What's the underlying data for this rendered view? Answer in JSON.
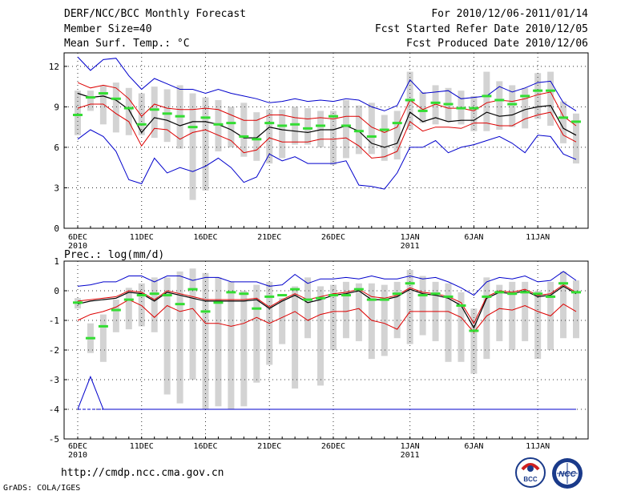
{
  "header": {
    "title": "DERF/NCC/BCC Monthly Forecast",
    "member_size": "Member Size=40",
    "variable": "Mean Surf. Temp.: °C",
    "period": "For 2010/12/06-2011/01/14",
    "fcst_started": "Fcst Started Refer Date 2010/12/05",
    "fcst_produced": "Fcst Produced Date 2010/12/06"
  },
  "footer": {
    "url": "http://cmdp.ncc.cma.gov.cn",
    "credit": "GrADS: COLA/IGES",
    "logo_left_text": "BCC",
    "logo_right_text": "NCC"
  },
  "colors": {
    "envelope": "#0000cc",
    "spread": "#dd0000",
    "mean": "#000000",
    "median": "#33dd33",
    "box": "#d3d3d3",
    "grid": "#333333"
  },
  "chart_data": [
    {
      "type": "line",
      "title": "Mean Surf. Temp.: °C",
      "ylim": [
        0,
        13
      ],
      "yticks": [
        "0",
        "3",
        "6",
        "9",
        "12"
      ],
      "ytick_values": [
        0,
        3,
        6,
        9,
        12
      ],
      "x": [
        1,
        2,
        3,
        4,
        5,
        6,
        7,
        8,
        9,
        10,
        11,
        12,
        13,
        14,
        15,
        16,
        17,
        18,
        19,
        20,
        21,
        22,
        23,
        24,
        25,
        26,
        27,
        28,
        29,
        30,
        31,
        32,
        33,
        34,
        35,
        36,
        37,
        38,
        39,
        40
      ],
      "xtick_labels": [
        {
          "day": 1,
          "label": "6DEC",
          "year": "2010"
        },
        {
          "day": 6,
          "label": "11DEC",
          "year": ""
        },
        {
          "day": 11,
          "label": "16DEC",
          "year": ""
        },
        {
          "day": 16,
          "label": "21DEC",
          "year": ""
        },
        {
          "day": 21,
          "label": "26DEC",
          "year": ""
        },
        {
          "day": 27,
          "label": "1JAN",
          "year": "2011"
        },
        {
          "day": 32,
          "label": "6JAN",
          "year": ""
        },
        {
          "day": 37,
          "label": "11JAN",
          "year": ""
        }
      ],
      "series": [
        {
          "name": "max",
          "values": [
            12.7,
            11.7,
            12.5,
            12.6,
            11.3,
            10.3,
            11.1,
            10.7,
            10.3,
            10.3,
            10.0,
            10.3,
            10.0,
            9.8,
            9.6,
            9.3,
            9.4,
            9.6,
            9.4,
            9.5,
            9.4,
            9.6,
            9.5,
            9.0,
            8.7,
            9.1,
            11.0,
            10.0,
            10.1,
            10.2,
            9.6,
            9.7,
            9.8,
            10.5,
            10.1,
            10.4,
            10.8,
            10.9,
            9.3,
            8.7
          ]
        },
        {
          "name": "upper",
          "values": [
            10.8,
            10.4,
            10.6,
            10.4,
            9.6,
            8.3,
            9.2,
            8.9,
            8.8,
            8.8,
            8.9,
            8.8,
            8.4,
            8.0,
            8.0,
            8.4,
            8.4,
            8.2,
            8.1,
            8.2,
            8.1,
            8.3,
            8.3,
            7.5,
            7.1,
            7.5,
            9.5,
            8.8,
            9.2,
            8.9,
            8.9,
            8.7,
            9.3,
            9.5,
            9.4,
            9.6,
            9.9,
            10.1,
            8.3,
            7.6
          ]
        },
        {
          "name": "mean",
          "values": [
            10.0,
            9.7,
            9.8,
            9.5,
            8.8,
            7.1,
            8.2,
            8.0,
            7.6,
            7.9,
            7.9,
            7.7,
            7.3,
            6.7,
            6.7,
            7.5,
            7.3,
            7.2,
            7.1,
            7.3,
            7.3,
            7.6,
            7.2,
            6.3,
            6.0,
            6.3,
            8.6,
            7.9,
            8.2,
            7.9,
            8.0,
            8.0,
            8.6,
            8.3,
            8.4,
            8.8,
            9.0,
            9.1,
            7.4,
            6.9
          ]
        },
        {
          "name": "lower",
          "values": [
            8.9,
            9.2,
            9.2,
            8.5,
            7.9,
            6.1,
            7.4,
            7.3,
            6.6,
            7.1,
            7.3,
            6.9,
            6.5,
            5.6,
            5.8,
            6.7,
            6.4,
            6.4,
            6.4,
            6.6,
            6.6,
            6.7,
            6.1,
            5.2,
            5.3,
            5.7,
            7.9,
            7.2,
            7.5,
            7.5,
            7.4,
            7.8,
            7.8,
            7.6,
            7.6,
            8.1,
            8.4,
            8.6,
            6.9,
            6.4
          ]
        },
        {
          "name": "min",
          "values": [
            6.6,
            7.3,
            6.8,
            5.7,
            3.6,
            3.3,
            5.2,
            4.1,
            4.5,
            4.2,
            4.6,
            5.2,
            4.5,
            3.4,
            3.8,
            5.5,
            5.0,
            5.3,
            4.8,
            4.8,
            4.8,
            5.0,
            3.2,
            3.1,
            2.9,
            4.1,
            6.0,
            6.0,
            6.5,
            5.6,
            6.0,
            6.2,
            6.5,
            6.8,
            6.3,
            5.6,
            6.9,
            6.8,
            5.5,
            5.1
          ]
        },
        {
          "name": "median",
          "values": [
            8.4,
            9.7,
            10.0,
            9.6,
            8.9,
            7.7,
            8.8,
            8.5,
            8.3,
            7.5,
            8.2,
            7.7,
            7.8,
            6.8,
            6.6,
            7.8,
            7.6,
            7.7,
            7.4,
            7.6,
            8.3,
            7.6,
            7.2,
            6.8,
            7.3,
            7.8,
            9.5,
            8.7,
            9.3,
            9.2,
            8.9,
            8.9,
            9.8,
            9.5,
            9.2,
            9.8,
            10.2,
            10.2,
            8.2,
            7.9
          ]
        }
      ],
      "boxes": {
        "low": [
          6.9,
          8.7,
          7.7,
          7.1,
          6.9,
          6.9,
          6.7,
          6.4,
          5.9,
          2.1,
          2.8,
          5.7,
          6.0,
          5.3,
          5.0,
          4.8,
          5.2,
          6.2,
          6.2,
          6.0,
          4.7,
          5.2,
          5.5,
          5.5,
          5.0,
          5.1,
          7.3,
          7.8,
          7.7,
          7.9,
          7.7,
          7.2,
          7.2,
          7.3,
          7.5,
          7.4,
          8.1,
          7.6,
          6.3,
          4.8
        ],
        "high": [
          10.2,
          10.2,
          10.6,
          10.8,
          10.4,
          10.0,
          10.5,
          10.3,
          10.6,
          10.0,
          9.7,
          9.5,
          9.0,
          9.3,
          8.6,
          8.8,
          8.8,
          9.0,
          8.9,
          8.7,
          8.7,
          9.5,
          9.1,
          9.3,
          8.4,
          8.7,
          11.6,
          10.1,
          10.6,
          10.4,
          10.2,
          9.8,
          11.6,
          10.9,
          10.6,
          10.4,
          11.5,
          11.6,
          9.4,
          8.5
        ]
      }
    },
    {
      "type": "line",
      "title": "Prec.: log(mm/d)",
      "ylim": [
        -5,
        1
      ],
      "yticks": [
        "-5",
        "-4",
        "-3",
        "-2",
        "-1",
        "0",
        "1"
      ],
      "ytick_values": [
        -5,
        -4,
        -3,
        -2,
        -1,
        0,
        1
      ],
      "x": [
        1,
        2,
        3,
        4,
        5,
        6,
        7,
        8,
        9,
        10,
        11,
        12,
        13,
        14,
        15,
        16,
        17,
        18,
        19,
        20,
        21,
        22,
        23,
        24,
        25,
        26,
        27,
        28,
        29,
        30,
        31,
        32,
        33,
        34,
        35,
        36,
        37,
        38,
        39,
        40
      ],
      "xtick_labels": [
        {
          "day": 1,
          "label": "6DEC",
          "year": "2010"
        },
        {
          "day": 6,
          "label": "11DEC",
          "year": ""
        },
        {
          "day": 11,
          "label": "16DEC",
          "year": ""
        },
        {
          "day": 16,
          "label": "21DEC",
          "year": ""
        },
        {
          "day": 21,
          "label": "26DEC",
          "year": ""
        },
        {
          "day": 27,
          "label": "1JAN",
          "year": "2011"
        },
        {
          "day": 32,
          "label": "6JAN",
          "year": ""
        },
        {
          "day": 37,
          "label": "11JAN",
          "year": ""
        }
      ],
      "series": [
        {
          "name": "max",
          "values": [
            0.15,
            0.2,
            0.3,
            0.3,
            0.5,
            0.5,
            0.3,
            0.5,
            0.5,
            0.35,
            0.45,
            0.45,
            0.3,
            0.3,
            0.3,
            0.15,
            0.2,
            0.55,
            0.25,
            0.4,
            0.4,
            0.45,
            0.4,
            0.5,
            0.4,
            0.4,
            0.5,
            0.4,
            0.45,
            0.3,
            0.1,
            -0.15,
            0.3,
            0.45,
            0.4,
            0.5,
            0.3,
            0.35,
            0.65,
            0.35
          ]
        },
        {
          "name": "upper",
          "values": [
            -0.35,
            -0.3,
            -0.25,
            -0.2,
            0.0,
            -0.05,
            -0.3,
            0.0,
            -0.1,
            -0.2,
            -0.3,
            -0.3,
            -0.3,
            -0.3,
            -0.25,
            -0.55,
            -0.3,
            -0.1,
            -0.3,
            -0.2,
            -0.1,
            -0.05,
            0.05,
            -0.2,
            -0.25,
            -0.15,
            0.1,
            -0.05,
            -0.1,
            -0.2,
            -0.4,
            -1.1,
            -0.2,
            0.0,
            -0.05,
            0.05,
            -0.15,
            -0.1,
            0.2,
            -0.05
          ]
        },
        {
          "name": "mean",
          "values": [
            -0.45,
            -0.35,
            -0.3,
            -0.25,
            -0.05,
            -0.1,
            -0.35,
            -0.05,
            -0.15,
            -0.25,
            -0.35,
            -0.35,
            -0.35,
            -0.35,
            -0.3,
            -0.6,
            -0.35,
            -0.15,
            -0.4,
            -0.3,
            -0.15,
            -0.1,
            0.0,
            -0.3,
            -0.3,
            -0.2,
            0.05,
            -0.1,
            -0.15,
            -0.25,
            -0.5,
            -1.25,
            -0.25,
            -0.05,
            -0.1,
            0.0,
            -0.2,
            -0.15,
            0.15,
            -0.1
          ]
        },
        {
          "name": "lower",
          "values": [
            -1.0,
            -0.8,
            -0.7,
            -0.55,
            -0.3,
            -0.5,
            -0.9,
            -0.5,
            -0.7,
            -0.6,
            -1.1,
            -1.1,
            -1.2,
            -1.1,
            -0.9,
            -1.1,
            -0.9,
            -0.7,
            -1.0,
            -0.8,
            -0.7,
            -0.7,
            -0.6,
            -1.0,
            -1.1,
            -1.3,
            -0.7,
            -0.7,
            -0.7,
            -0.7,
            -0.9,
            -1.4,
            -0.85,
            -0.6,
            -0.65,
            -0.5,
            -0.7,
            -0.85,
            -0.45,
            -0.7
          ]
        },
        {
          "name": "min",
          "values": [
            -4.0,
            -2.9,
            -4.0,
            -4.0,
            -4.0,
            -4.0,
            -4.0,
            -4.0,
            -4.0,
            -4.0,
            -4.0,
            -4.0,
            -4.0,
            -4.0,
            -4.0,
            -4.0,
            -4.0,
            -4.0,
            -4.0,
            -4.0,
            -4.0,
            -4.0,
            -4.0,
            -4.0,
            -4.0,
            -4.0,
            -4.0,
            -4.0,
            -4.0,
            -4.0,
            -4.0,
            -4.0,
            -4.0,
            -4.0,
            -4.0,
            -4.0,
            -4.0,
            -4.0,
            -4.0,
            -4.0
          ]
        },
        {
          "name": "median",
          "values": [
            -0.4,
            -1.6,
            -1.2,
            -0.65,
            -0.3,
            -0.15,
            -0.1,
            -0.15,
            -0.45,
            0.05,
            -0.7,
            -0.4,
            -0.05,
            -0.1,
            -0.6,
            -0.2,
            -0.15,
            0.05,
            -0.3,
            -0.25,
            -0.15,
            -0.15,
            0.05,
            -0.3,
            -0.3,
            -0.1,
            0.25,
            -0.15,
            -0.1,
            -0.2,
            -0.5,
            -1.35,
            -0.2,
            -0.05,
            -0.1,
            -0.05,
            -0.1,
            -0.2,
            0.25,
            -0.05
          ]
        },
        {
          "name": "baseline",
          "values": [
            -4.0,
            -4.0,
            -4.0,
            -4.0,
            -4.0,
            -4.0,
            -4.0,
            -4.0,
            -4.0,
            -4.0,
            -4.0,
            -4.0,
            -4.0,
            -4.0,
            -4.0,
            -4.0,
            -4.0,
            -4.0,
            -4.0,
            -4.0,
            -4.0,
            -4.0,
            -4.0,
            -4.0,
            -4.0,
            -4.0,
            -4.0,
            -4.0,
            -4.0,
            -4.0,
            -4.0,
            -4.0,
            -4.0,
            -4.0,
            -4.0,
            -4.0,
            -4.0,
            -4.0,
            -4.0,
            -4.0
          ]
        }
      ],
      "boxes": {
        "low": [
          -0.6,
          -2.1,
          -2.4,
          -1.4,
          -1.3,
          -1.2,
          -1.4,
          -3.5,
          -3.8,
          -3.0,
          -4.0,
          -3.9,
          -4.0,
          -3.9,
          -3.1,
          -2.5,
          -1.8,
          -3.3,
          -1.6,
          -3.2,
          -2.0,
          -1.6,
          -1.7,
          -2.3,
          -2.2,
          -1.6,
          -1.8,
          -1.5,
          -1.7,
          -2.4,
          -2.4,
          -2.8,
          -2.3,
          -1.7,
          -2.0,
          -1.7,
          -2.3,
          -2.0,
          -1.6,
          -1.6
        ],
        "high": [
          -0.25,
          -1.1,
          -0.8,
          -0.3,
          0.1,
          0.25,
          0.45,
          0.45,
          0.65,
          0.75,
          0.6,
          0.45,
          0.3,
          0.0,
          0.2,
          0.3,
          -0.25,
          0.15,
          0.45,
          0.15,
          0.2,
          0.3,
          0.25,
          0.25,
          0.2,
          0.3,
          0.7,
          0.5,
          0.3,
          0.25,
          -0.05,
          -0.6,
          0.45,
          0.2,
          0.3,
          0.3,
          0.0,
          0.3,
          0.65,
          0.35
        ]
      }
    }
  ],
  "prec_label": "Prec.: log(mm/d)"
}
